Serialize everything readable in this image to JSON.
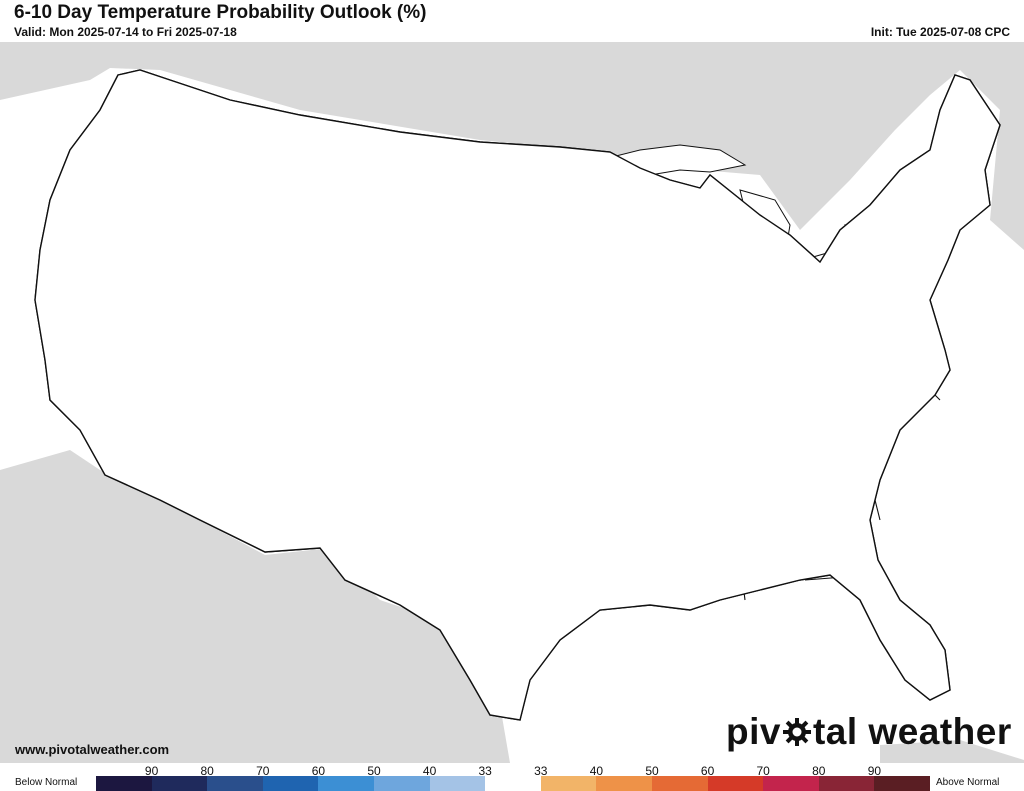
{
  "header": {
    "title": "6-10 Day Temperature Probability Outlook (%)",
    "valid": "Valid: Mon 2025-07-14 to Fri 2025-07-18",
    "init": "Init: Tue 2025-07-08 CPC"
  },
  "footer": {
    "url": "www.pivotalweather.com",
    "brand_left": "piv",
    "brand_right": "tal weather"
  },
  "legend": {
    "below_label": "Below Normal",
    "above_label": "Above Normal",
    "ticks": [
      "90",
      "80",
      "70",
      "60",
      "50",
      "40",
      "33",
      "33",
      "40",
      "50",
      "60",
      "70",
      "80",
      "90"
    ],
    "colors": [
      "#1c1740",
      "#1f2a5c",
      "#2a4f8c",
      "#1f64b0",
      "#3c8fd4",
      "#6ea6dd",
      "#a4c3e6",
      "#ffffff",
      "#f2b468",
      "#ee9248",
      "#e56a35",
      "#d53a28",
      "#c3244c",
      "#892536",
      "#5a1e23"
    ]
  },
  "map_colors": {
    "land": "#ffffff",
    "ocean": "#ffffff",
    "outside_land": "#d9d9d9",
    "lakes": "#ffffff",
    "above_40": "#f2b468",
    "above_50": "#ee9248",
    "above_60": "#e56a35",
    "above_70": "#d53a28",
    "above_80": "#c3244c",
    "below_40": "#a4c3e6",
    "below_50": "#6ea6dd",
    "below_60": "#3c8fd4"
  }
}
